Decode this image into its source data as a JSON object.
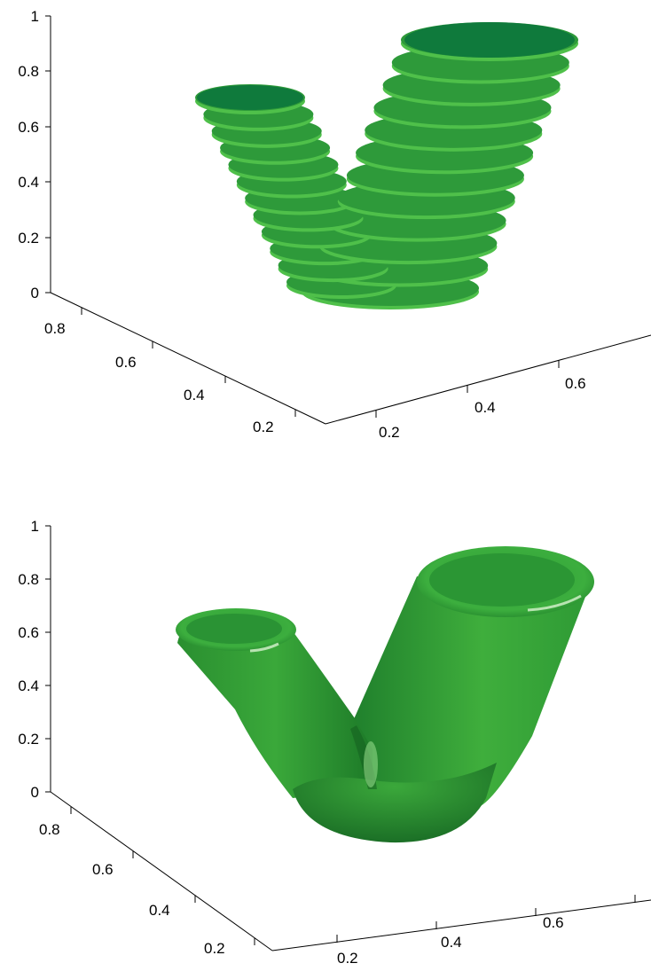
{
  "figure": {
    "panels": [
      {
        "id": "stacked-slices",
        "z_ticks": [
          "0",
          "0.2",
          "0.4",
          "0.6",
          "0.8",
          "1"
        ],
        "left_axis_ticks": [
          "0.8",
          "0.6",
          "0.4",
          "0.2"
        ],
        "right_axis_ticks": [
          "0.2",
          "0.4",
          "0.6"
        ]
      },
      {
        "id": "smooth-surface",
        "z_ticks": [
          "0",
          "0.2",
          "0.4",
          "0.6",
          "0.8",
          "1"
        ],
        "left_axis_ticks": [
          "0.8",
          "0.6",
          "0.4",
          "0.2"
        ],
        "right_axis_ticks": [
          "0.2",
          "0.4",
          "0.6"
        ]
      }
    ]
  },
  "colors": {
    "surface_dark": "#0f7a3c",
    "surface_mid": "#2e9a3a",
    "surface_light": "#4fc04a",
    "edge_light": "#5fd05a"
  }
}
